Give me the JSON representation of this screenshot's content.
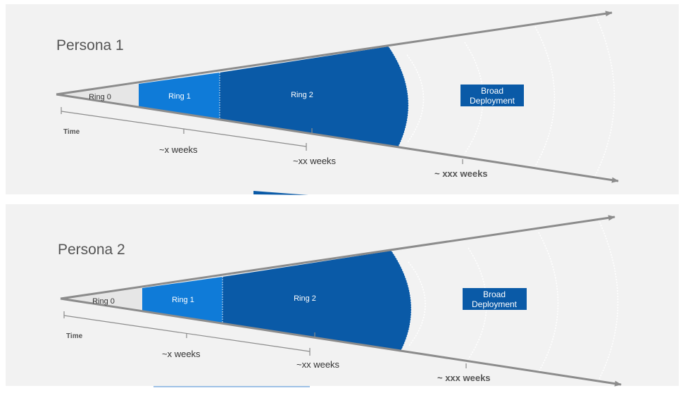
{
  "colors": {
    "panel_bg": "#f2f2f2",
    "ring0": "#e6e6e6",
    "ring1": "#0f7bd8",
    "ring2": "#0a5aa7",
    "arrow": "#8c8c8c",
    "broad_box": "#0a5aa7"
  },
  "personas": [
    {
      "title": "Persona 1",
      "ring0": "Ring 0",
      "ring1": "Ring 1",
      "ring2": "Ring 2",
      "broad_line1": "Broad",
      "broad_line2": "Deployment",
      "time": "Time",
      "weeks_x": "~x weeks",
      "weeks_xx": "~xx weeks",
      "weeks_xxx": "~ xxx weeks"
    },
    {
      "title": "Persona 2",
      "ring0": "Ring 0",
      "ring1": "Ring 1",
      "ring2": "Ring 2",
      "broad_line1": "Broad",
      "broad_line2": "Deployment",
      "time": "Time",
      "weeks_x": "~x weeks",
      "weeks_xx": "~xx weeks",
      "weeks_xxx": "~ xxx weeks"
    }
  ]
}
